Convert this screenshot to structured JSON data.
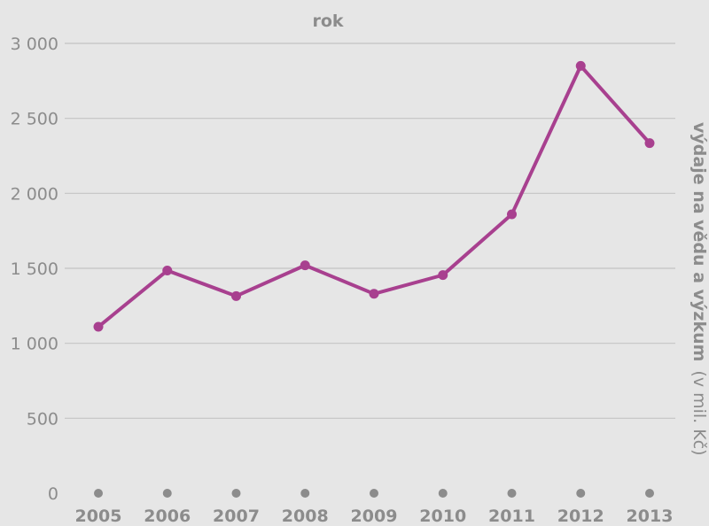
{
  "chart_data": {
    "type": "line",
    "xlabel": "rok",
    "ylabel": "výdaje na vědu a výzkum",
    "ylabel_unit": "(v mil. Kč)",
    "x": [
      "2005",
      "2006",
      "2007",
      "2008",
      "2009",
      "2010",
      "2011",
      "2012",
      "2013"
    ],
    "series": [
      {
        "values": [
          1110,
          1485,
          1315,
          1520,
          1330,
          1455,
          1860,
          2850,
          2335
        ]
      }
    ],
    "ylim": [
      0,
      3000
    ],
    "yticks": [
      0,
      500,
      1000,
      1500,
      2000,
      2500,
      3000
    ],
    "ytick_labels": [
      "0",
      "500",
      "1 000",
      "1 500",
      "2 000",
      "2 500",
      "3 000"
    ],
    "grid": true,
    "colors": {
      "line": "#a8408f",
      "grid": "#c3c3c3",
      "baseline_marker": "#8c8c8c",
      "text": "#8c8c8c",
      "background": "#e6e6e6"
    }
  }
}
